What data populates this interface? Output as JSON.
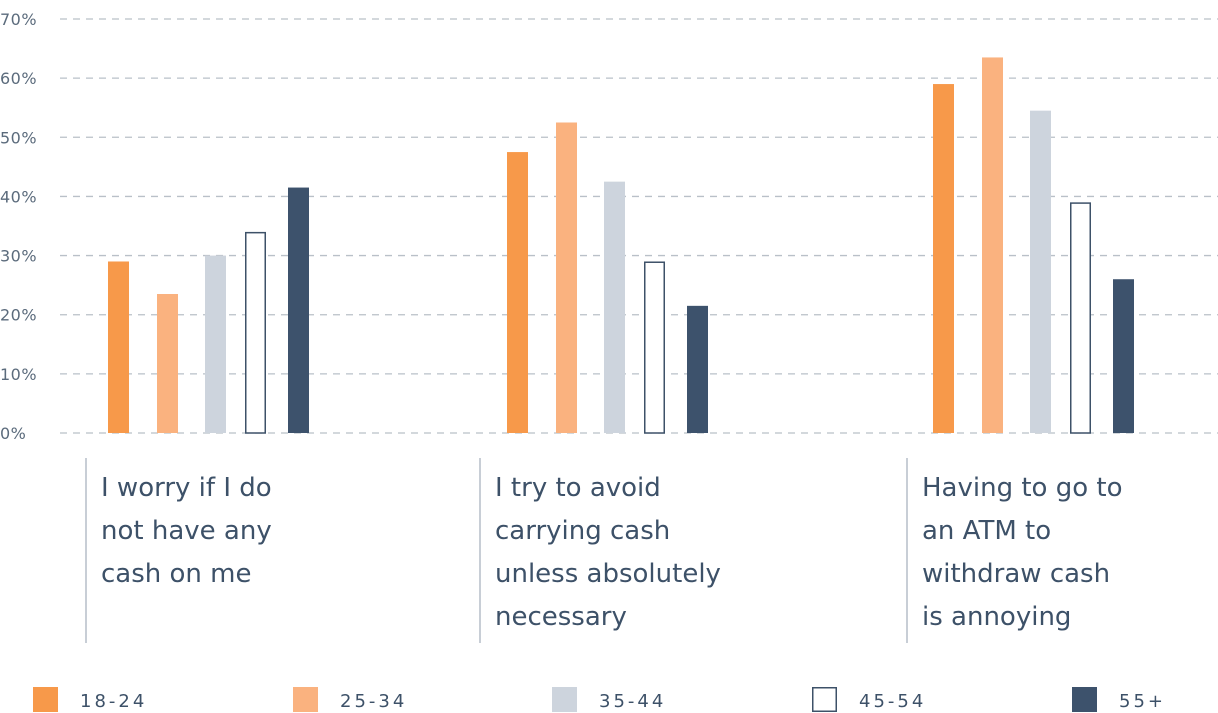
{
  "chart_data": {
    "type": "bar",
    "title": "",
    "xlabel": "",
    "ylabel": "",
    "ylim": [
      0,
      70
    ],
    "yticks": [
      "0%",
      "10%",
      "20%",
      "30%",
      "40%",
      "50%",
      "60%",
      "70%"
    ],
    "grid": true,
    "legend_position": "bottom",
    "categories": [
      [
        "I worry if I do",
        "not have any",
        "cash on me"
      ],
      [
        "I try to avoid",
        "carrying cash",
        "unless absolutely",
        "necessary"
      ],
      [
        "Having to go to",
        "an ATM to",
        "withdraw cash",
        "is annoying"
      ]
    ],
    "series": [
      {
        "name": "18-24",
        "color": "#f7994a",
        "values": [
          29,
          47.5,
          59
        ]
      },
      {
        "name": "25-34",
        "color": "#fab27f",
        "values": [
          23.5,
          52.5,
          63.5
        ]
      },
      {
        "name": "35-44",
        "color": "#cdd4dd",
        "values": [
          30,
          42.5,
          54.5
        ]
      },
      {
        "name": "45-54",
        "color": "#ffffff",
        "outline": "#3d5168",
        "values": [
          34,
          29,
          39
        ]
      },
      {
        "name": "55+",
        "color": "#3d526c",
        "values": [
          41.5,
          21.5,
          26
        ]
      }
    ]
  }
}
